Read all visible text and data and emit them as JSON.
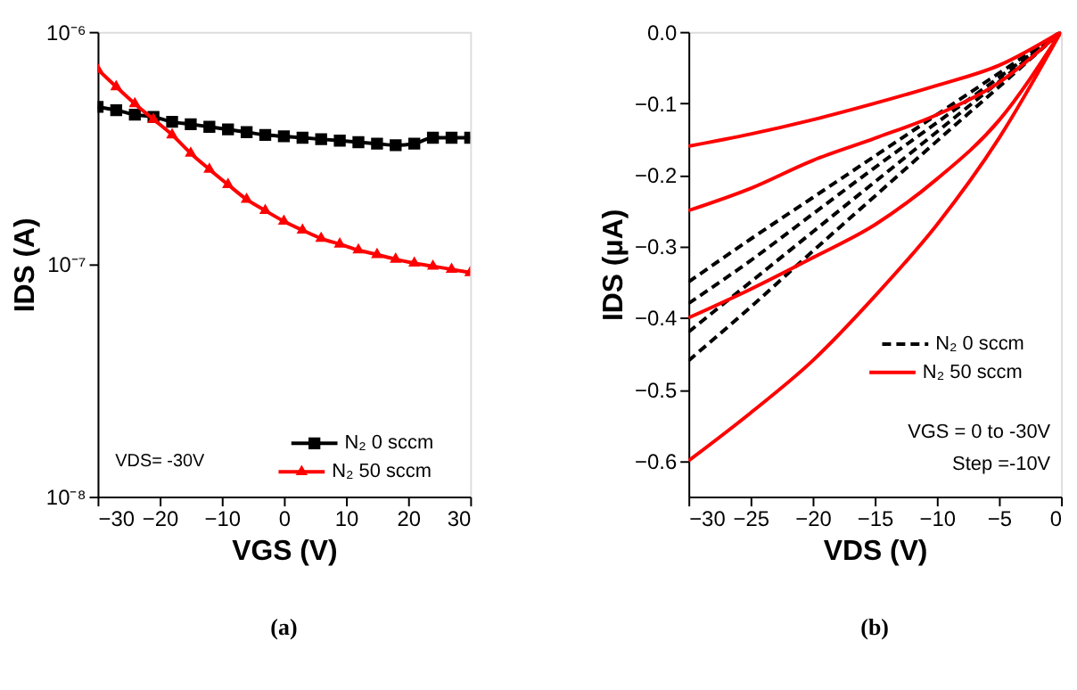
{
  "chart_data": [
    {
      "type": "line",
      "xlabel": "VGS (V)",
      "ylabel": "IDS (A)",
      "log": "y",
      "marker": "square",
      "legend": "bottom right",
      "grid": false,
      "x": [
        -30,
        -27,
        -24,
        -21,
        -18,
        -15,
        -12,
        -9,
        -6,
        -3,
        0,
        3,
        6,
        9,
        12,
        15,
        18,
        21,
        24,
        27,
        30
      ],
      "xlim": [
        -30,
        30
      ],
      "xticks": [
        -30,
        -20,
        -10,
        0,
        10,
        20,
        30
      ],
      "ylim": [
        1e-08,
        1e-06
      ],
      "yticks": [
        {
          "value": 1e-08,
          "label": "10⁻⁸"
        },
        {
          "value": 1e-07,
          "label": "10⁻⁷"
        },
        {
          "value": 1e-06,
          "label": "10⁻⁶"
        }
      ],
      "series": [
        {
          "name": "N₂ 0 sccm",
          "color": "#000000",
          "marker": "square",
          "values": [
            4.75e-07,
            4.6e-07,
            4.4e-07,
            4.3e-07,
            4.1e-07,
            4e-07,
            3.9e-07,
            3.8e-07,
            3.7e-07,
            3.6e-07,
            3.55e-07,
            3.5e-07,
            3.45e-07,
            3.4e-07,
            3.35e-07,
            3.3e-07,
            3.25e-07,
            3.3e-07,
            3.5e-07,
            3.5e-07,
            3.5e-07
          ]
        },
        {
          "name": "N₂ 50 sccm",
          "color": "#ff0000",
          "marker": "triangle",
          "values": [
            6.9e-07,
            5.8e-07,
            4.9e-07,
            4.2e-07,
            3.6e-07,
            3e-07,
            2.56e-07,
            2.2e-07,
            1.9e-07,
            1.7e-07,
            1.53e-07,
            1.4e-07,
            1.29e-07,
            1.22e-07,
            1.15e-07,
            1.1e-07,
            1.05e-07,
            1.01e-07,
            9.8e-08,
            9.5e-08,
            9.2e-08
          ]
        }
      ],
      "annotations": [
        "VDS= -30V",
        "(a)"
      ]
    },
    {
      "type": "line",
      "xlabel": "VDS (V)",
      "ylabel": "IDS (μA)",
      "legend": "bottom right",
      "grid": false,
      "marker": "none",
      "x": [
        -30,
        -25,
        -20,
        -15,
        -10,
        -5,
        0
      ],
      "xlim": [
        -30,
        0
      ],
      "xticks": [
        -30,
        -25,
        -20,
        -15,
        -10,
        -5,
        0
      ],
      "ylim": [
        -0.65,
        0
      ],
      "yticks": [
        {
          "value": 0,
          "label": "0.0"
        },
        -0.1,
        -0.2,
        -0.3,
        -0.4,
        -0.5,
        -0.6
      ],
      "series": [
        {
          "name": "N₂ 0 sccm",
          "color": "#000000",
          "line_style": "dashed",
          "values": [
            -0.35,
            -0.29,
            -0.232,
            -0.174,
            -0.116,
            -0.058,
            0
          ]
        },
        {
          "color": "#000000",
          "line_style": "dashed",
          "values": [
            -0.38,
            -0.32,
            -0.255,
            -0.19,
            -0.127,
            -0.064,
            0
          ]
        },
        {
          "color": "#000000",
          "line_style": "dashed",
          "values": [
            -0.42,
            -0.35,
            -0.28,
            -0.21,
            -0.14,
            -0.07,
            0
          ]
        },
        {
          "color": "#000000",
          "line_style": "dashed",
          "values": [
            -0.46,
            -0.385,
            -0.307,
            -0.23,
            -0.153,
            -0.077,
            0
          ]
        },
        {
          "name": "N₂ 50 sccm",
          "color": "#ff0000",
          "line_style": "solid",
          "values": [
            -0.16,
            -0.143,
            -0.123,
            -0.1,
            -0.075,
            -0.047,
            0
          ]
        },
        {
          "color": "#ff0000",
          "line_style": "solid",
          "values": [
            -0.25,
            -0.219,
            -0.18,
            -0.149,
            -0.116,
            -0.071,
            0
          ]
        },
        {
          "color": "#ff0000",
          "line_style": "solid",
          "values": [
            -0.4,
            -0.36,
            -0.316,
            -0.27,
            -0.206,
            -0.124,
            0
          ]
        },
        {
          "color": "#ff0000",
          "line_style": "solid",
          "values": [
            -0.6,
            -0.533,
            -0.46,
            -0.37,
            -0.27,
            -0.149,
            0
          ]
        }
      ],
      "annotations": [
        "VGS = 0 to -30V",
        "Step =-10V",
        "(b)"
      ]
    }
  ]
}
